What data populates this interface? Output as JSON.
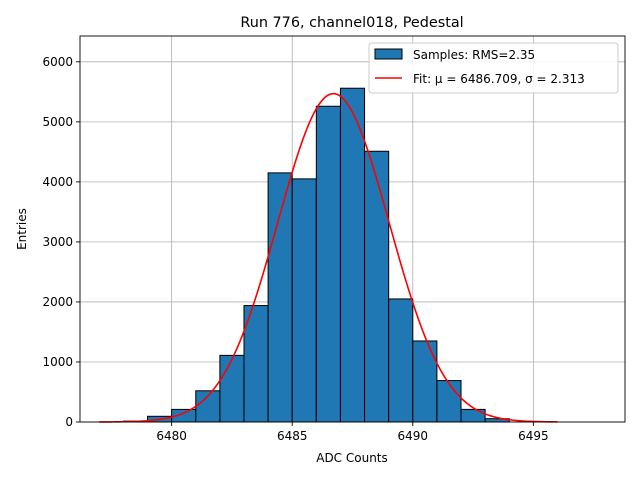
{
  "chart_data": {
    "type": "bar",
    "title": "Run 776, channel018, Pedestal",
    "xlabel": "ADC Counts",
    "ylabel": "Entries",
    "xlim": [
      6476.2,
      6498.8
    ],
    "ylim": [
      0,
      6430
    ],
    "xticks": [
      6480,
      6485,
      6490,
      6495
    ],
    "yticks": [
      0,
      1000,
      2000,
      3000,
      4000,
      5000,
      6000
    ],
    "grid": true,
    "legend_position": "top-right",
    "bin_edges": [
      6478,
      6479,
      6480,
      6481,
      6482,
      6483,
      6484,
      6485,
      6486,
      6487,
      6488,
      6489,
      6490,
      6491,
      6492,
      6493,
      6494
    ],
    "counts": [
      15,
      95,
      210,
      520,
      1110,
      1940,
      4150,
      4050,
      5260,
      5560,
      4510,
      2050,
      1350,
      690,
      210,
      55
    ],
    "series": [
      {
        "name": "Samples: RMS=2.35",
        "kind": "histogram",
        "color": "#1f77b4",
        "edge": "#000000"
      },
      {
        "name": "Fit: μ = 6486.709, σ = 2.313",
        "kind": "line",
        "color": "#ff0000",
        "mu": 6486.709,
        "sigma": 2.313,
        "amplitude": 5470,
        "x_range": [
          6477,
          6496
        ]
      }
    ]
  }
}
